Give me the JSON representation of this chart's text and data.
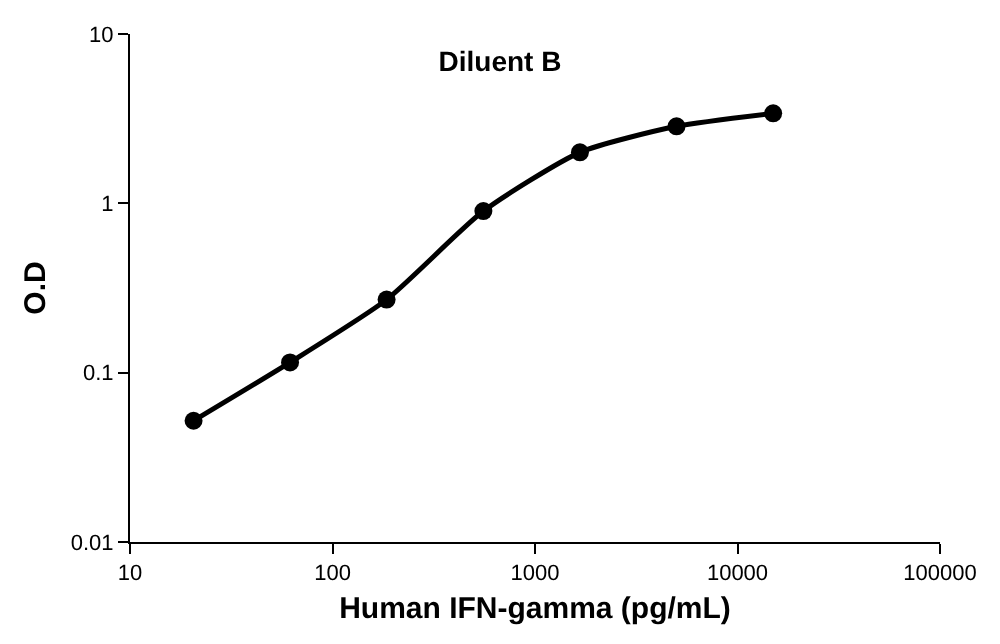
{
  "chart_data": {
    "type": "line",
    "title": "Diluent B",
    "xlabel": "Human IFN-gamma (pg/mL)",
    "ylabel": "O.D",
    "x": [
      20.6,
      61.7,
      185,
      556,
      1667,
      5000,
      15000
    ],
    "series": [
      {
        "color": "#000000",
        "values": [
          0.052,
          0.115,
          0.27,
          0.9,
          2.0,
          2.85,
          3.4
        ]
      }
    ],
    "log": "xy",
    "xlim": [
      10,
      100000
    ],
    "ylim": [
      0.01,
      10
    ],
    "xticks": [
      10,
      100,
      1000,
      10000,
      100000
    ],
    "yticks": [
      0.01,
      0.1,
      1,
      10
    ],
    "marker": "circle",
    "line_style": "solid",
    "legend": false
  }
}
